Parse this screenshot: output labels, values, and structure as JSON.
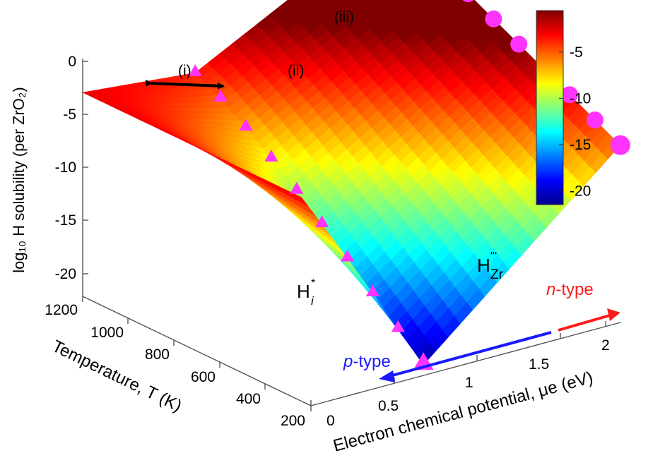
{
  "chart_data": {
    "type": "surface",
    "zlabel": "log₁₀ H solubility (per ZrO₂)",
    "xlabel": "Temperature, T (K)",
    "ylabel": "Electron chemical potential,  μe (eV)",
    "z_ticks": [
      "0",
      "-5",
      "-10",
      "-15",
      "-20"
    ],
    "t_ticks": [
      "1200",
      "1000",
      "800",
      "600",
      "400",
      "200"
    ],
    "mu_ticks": [
      "0",
      "0.5",
      "1",
      "1.5",
      "2"
    ],
    "colorbar_ticks": [
      "-5",
      "-10",
      "-15",
      "-20"
    ],
    "colorbar_range": [
      -21.5,
      -0.5
    ],
    "zlim": [
      -22,
      0
    ],
    "tlim": [
      200,
      1200
    ],
    "mulim": [
      0,
      2.2
    ],
    "colormap": "jet",
    "ridge_mu": 0.8,
    "corners": [
      {
        "T": 1200,
        "mu": 0.0,
        "logS": -2.8
      },
      {
        "T": 1200,
        "mu": 0.8,
        "logS": -3.8
      },
      {
        "T": 1200,
        "mu": 2.2,
        "logS": 5.8
      },
      {
        "T": 200,
        "mu": 0.8,
        "logS": -21.0
      },
      {
        "T": 200,
        "mu": 2.2,
        "logS": -5.3
      }
    ],
    "annotations": [
      {
        "label": "(i)",
        "kind": "double-arrow"
      },
      {
        "label": "(ii)",
        "kind": "cone-markers"
      },
      {
        "label": "(iii)",
        "kind": "sphere-markers"
      }
    ],
    "region_labels": {
      "interstitial": {
        "base": "H",
        "sup": "*",
        "sub": "i"
      },
      "substitutional": {
        "base": "H",
        "sup": "'''",
        "sub": "Zr"
      }
    },
    "doping": [
      {
        "label": "p-type",
        "color": "#1a1aff"
      },
      {
        "label": "n-type",
        "color": "#ff1a1a"
      }
    ],
    "marker_color": "#ff33ff"
  }
}
